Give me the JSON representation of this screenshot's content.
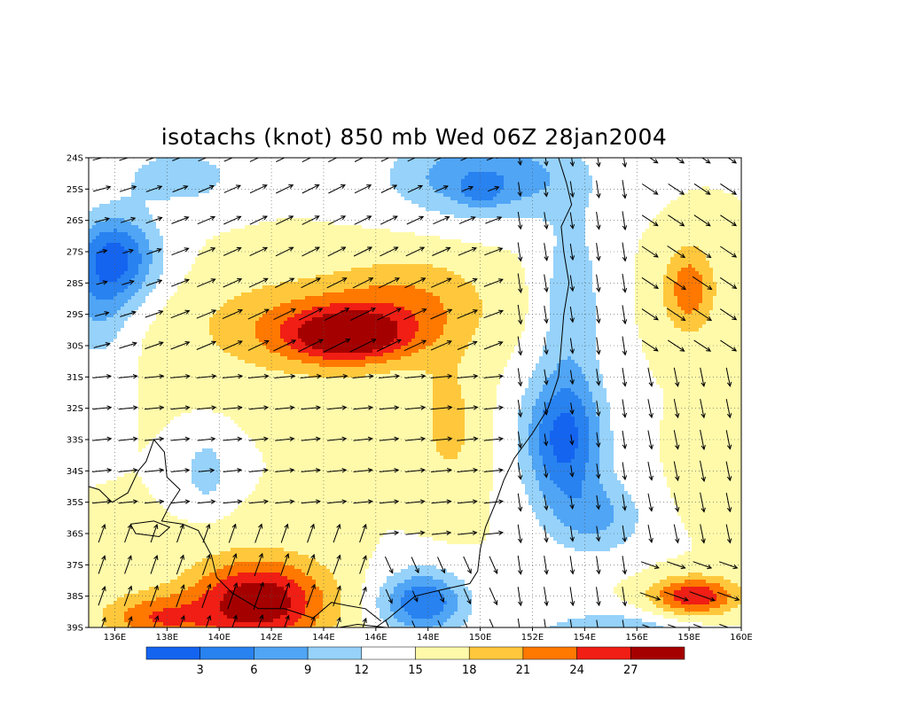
{
  "title": "isotachs (knot) 850 mb Wed 06Z 28jan2004",
  "colors": {
    "frame": "#000000",
    "grid": "#555555",
    "coast": "#000000",
    "arrow": "#000000"
  },
  "map": {
    "lon_range": [
      135,
      160
    ],
    "lat_range": [
      -39,
      -24
    ],
    "lat_labels": [
      "24S",
      "25S",
      "26S",
      "27S",
      "28S",
      "29S",
      "30S",
      "31S",
      "32S",
      "33S",
      "34S",
      "35S",
      "36S",
      "37S",
      "38S",
      "39S"
    ],
    "lon_labels": [
      "136E",
      "138E",
      "140E",
      "142E",
      "144E",
      "146E",
      "148E",
      "150E",
      "152E",
      "154E",
      "156E",
      "158E",
      "160E"
    ]
  },
  "colorbar": {
    "colors": [
      "#1464f0",
      "#2882f0",
      "#50a5f5",
      "#96d2fa",
      "#ffffff",
      "#fffaaa",
      "#ffc83c",
      "#ff7800",
      "#f01e14",
      "#a50000"
    ],
    "labels": [
      "3",
      "6",
      "9",
      "12",
      "15",
      "18",
      "21",
      "24",
      "27"
    ]
  },
  "chart_data": {
    "type": "heatmap",
    "title": "isotachs (knot) 850 mb Wed 06Z 28jan2004",
    "variable": "wind speed (knot)",
    "level": "850 mb",
    "levels": [
      3,
      6,
      9,
      12,
      15,
      18,
      21,
      24,
      27
    ],
    "xlim": [
      135,
      160
    ],
    "ylim": [
      -39,
      -24
    ],
    "features": [
      {
        "label": "speed maximum",
        "lon": 142,
        "lat": -38,
        "value": 27
      },
      {
        "label": "speed maximum",
        "lon": 145,
        "lat": -29.7,
        "value": 24
      },
      {
        "label": "speed maximum",
        "lon": 158.2,
        "lat": -38,
        "value": 24
      },
      {
        "label": "speed minimum",
        "lon": 136,
        "lat": -27.2,
        "value": 3
      },
      {
        "label": "speed minimum",
        "lon": 153,
        "lat": -33,
        "value": 3
      },
      {
        "label": "speed minimum",
        "lon": 147.9,
        "lat": -38.2,
        "value": 3
      },
      {
        "label": "speed minimum",
        "lon": 150.1,
        "lat": -25.1,
        "value": 3
      }
    ]
  }
}
